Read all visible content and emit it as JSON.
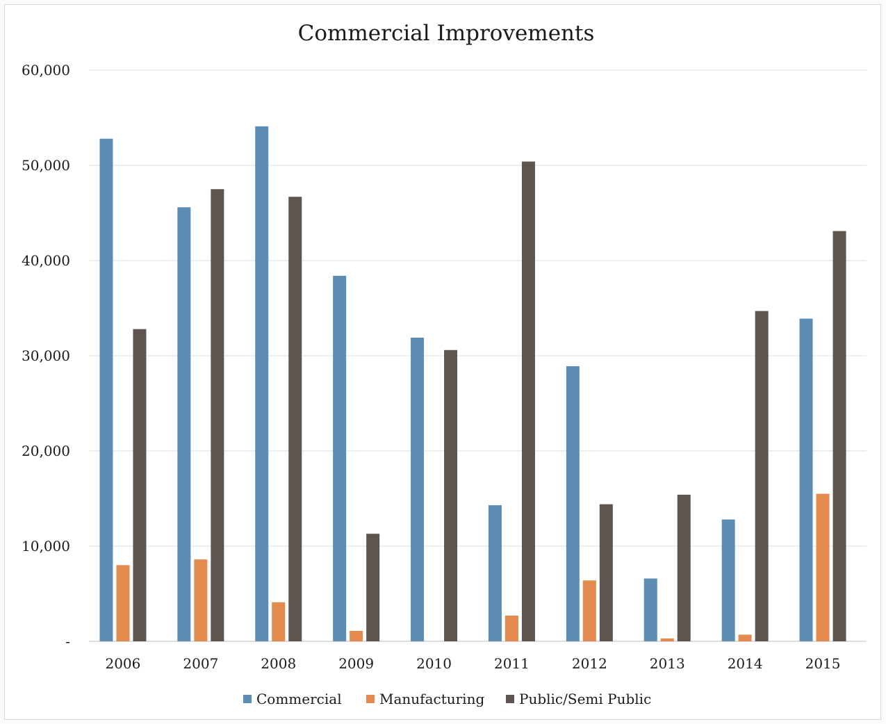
{
  "chart_data": {
    "type": "bar",
    "title": "Commercial Improvements",
    "xlabel": "",
    "ylabel": "",
    "categories": [
      "2006",
      "2007",
      "2008",
      "2009",
      "2010",
      "2011",
      "2012",
      "2013",
      "2014",
      "2015"
    ],
    "series": [
      {
        "name": "Commercial",
        "color": "#5b8db5",
        "values": [
          52800,
          45600,
          54100,
          38400,
          31900,
          14300,
          28900,
          6600,
          12800,
          33900
        ]
      },
      {
        "name": "Manufacturing",
        "color": "#e38b4f",
        "values": [
          8000,
          8600,
          4100,
          1100,
          0,
          2700,
          6400,
          300,
          700,
          15500
        ]
      },
      {
        "name": "Public/Semi Public",
        "color": "#5f5450",
        "values": [
          32800,
          47500,
          46700,
          11300,
          30600,
          50400,
          14400,
          15400,
          34700,
          43100
        ]
      }
    ],
    "ylim": [
      0,
      60000
    ],
    "yticks": [
      0,
      10000,
      20000,
      30000,
      40000,
      50000,
      60000
    ],
    "ytick_labels": [
      "-",
      "10,000",
      "20,000",
      "30,000",
      "40,000",
      "50,000",
      "60,000"
    ],
    "grid": true,
    "legend_position": "bottom"
  }
}
